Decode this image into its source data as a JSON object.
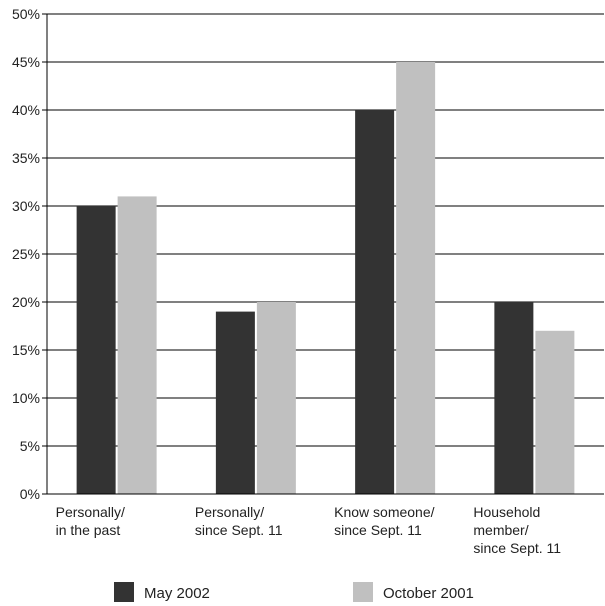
{
  "chart_data": {
    "type": "bar",
    "title": "",
    "xlabel": "",
    "ylabel": "",
    "ylim": [
      0,
      50
    ],
    "y_tick_step": 5,
    "y_tick_format": "percent",
    "grid": "horizontal",
    "legend_position": "bottom",
    "categories": [
      [
        "Personally/",
        "in the past"
      ],
      [
        "Personally/",
        "since Sept. 11"
      ],
      [
        "Know someone/",
        "since Sept. 11"
      ],
      [
        "Household",
        "member/",
        "since Sept. 11"
      ]
    ],
    "series": [
      {
        "name": "May 2002",
        "color": "#333333",
        "values": [
          30,
          19,
          40,
          20
        ]
      },
      {
        "name": "October 2001",
        "color": "#c0c0c0",
        "values": [
          31,
          20,
          45,
          17
        ]
      }
    ]
  }
}
